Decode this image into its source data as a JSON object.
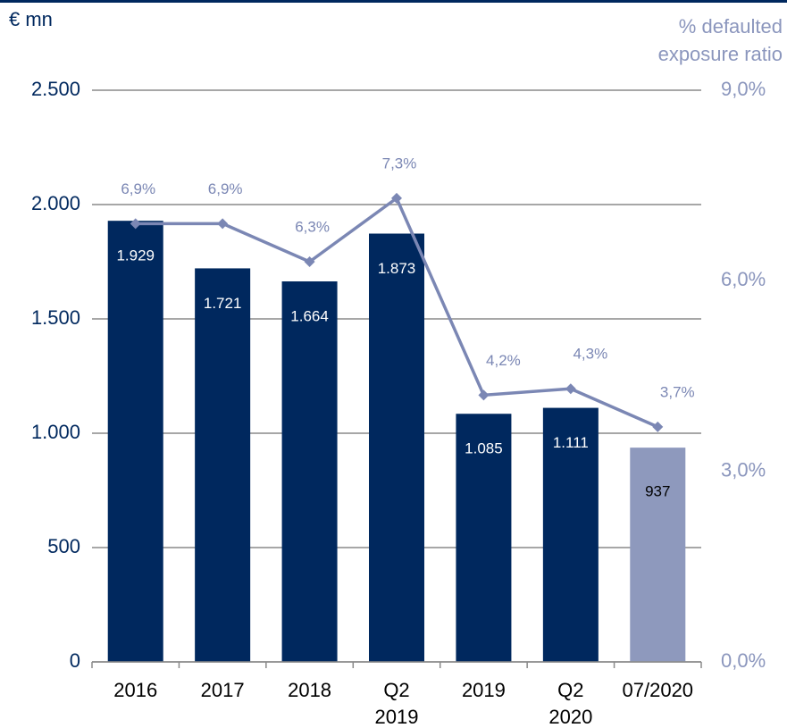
{
  "chart_data": {
    "type": "bar-line",
    "ylabel": "€ mn",
    "y2label": [
      "% defaulted",
      "exposure ratio"
    ],
    "categories": [
      "2016",
      "2017",
      "2018",
      "Q2 2019",
      "2019",
      "Q2 2020",
      "07/2020"
    ],
    "series": [
      {
        "type": "bar",
        "values": [
          1929,
          1721,
          1664,
          1873,
          1085,
          1111,
          937
        ],
        "value_labels": [
          "1.929",
          "1.721",
          "1.664",
          "1.873",
          "1.085",
          "1.111",
          "937"
        ],
        "colors": [
          "#00285e",
          "#00285e",
          "#00285e",
          "#00285e",
          "#00285e",
          "#00285e",
          "#8e99bd"
        ]
      },
      {
        "type": "line",
        "axis": "y2",
        "color": "#7b87b4",
        "values": [
          6.9,
          6.9,
          6.3,
          7.3,
          4.2,
          4.3,
          3.7
        ],
        "value_labels": [
          "6,9%",
          "6,9%",
          "6,3%",
          "7,3%",
          "4,2%",
          "4,3%",
          "3,7%"
        ]
      }
    ],
    "ylim": [
      0,
      2500
    ],
    "yticks": [
      0,
      500,
      {
        "value": 1000,
        "label": "1.000"
      },
      {
        "value": 1500,
        "label": "1.500"
      },
      {
        "value": 2000,
        "label": "2.000"
      },
      {
        "value": 2500,
        "label": "2.500"
      }
    ],
    "y2lim": [
      0,
      9
    ],
    "y2ticks": [
      {
        "value": 0,
        "label": "0,0%"
      },
      {
        "value": 3,
        "label": "3,0%"
      },
      {
        "value": 6,
        "label": "6,0%"
      },
      {
        "value": 9,
        "label": "9,0%"
      }
    ],
    "grid": true
  }
}
